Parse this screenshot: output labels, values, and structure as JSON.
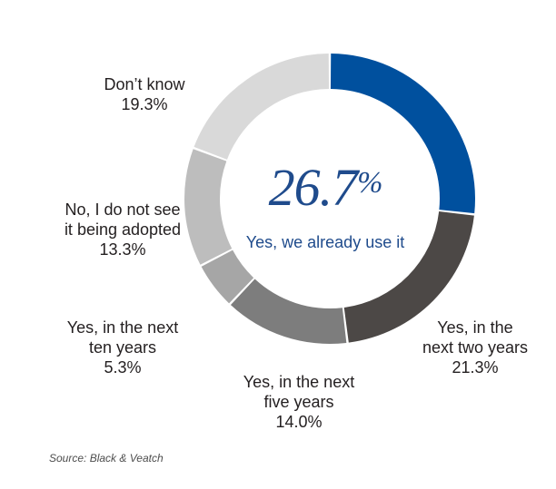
{
  "chart_data": {
    "type": "pie",
    "donut": true,
    "center": {
      "value": "26.7",
      "unit": "%",
      "label": "Yes, we already use it"
    },
    "slices": [
      {
        "label": "Yes, we already use it",
        "value": 26.7,
        "value_text": "",
        "color": "#00509e"
      },
      {
        "label": "Yes, in the next two years",
        "value": 21.3,
        "value_text": "21.3%",
        "color": "#4c4846"
      },
      {
        "label": "Yes, in the next five years",
        "value": 14.0,
        "value_text": "14.0%",
        "color": "#7d7d7d"
      },
      {
        "label": "Yes, in the next ten years",
        "value": 5.3,
        "value_text": "5.3%",
        "color": "#a6a6a6"
      },
      {
        "label": "No, I do not see it being adopted",
        "value": 13.3,
        "value_text": "13.3%",
        "color": "#bdbdbd"
      },
      {
        "label": "Don’t know",
        "value": 19.3,
        "value_text": "19.3%",
        "color": "#d9d9d9"
      }
    ],
    "labels": {
      "two_years": [
        "Yes, in the",
        "next two years"
      ],
      "five_years": [
        "Yes, in the next",
        "five years"
      ],
      "ten_years": [
        "Yes, in the next",
        "ten years"
      ],
      "not_adopted": [
        "No, I do not see",
        "it being adopted"
      ],
      "dont_know": [
        "Don’t know"
      ]
    },
    "source": "Source: Black & Veatch"
  }
}
